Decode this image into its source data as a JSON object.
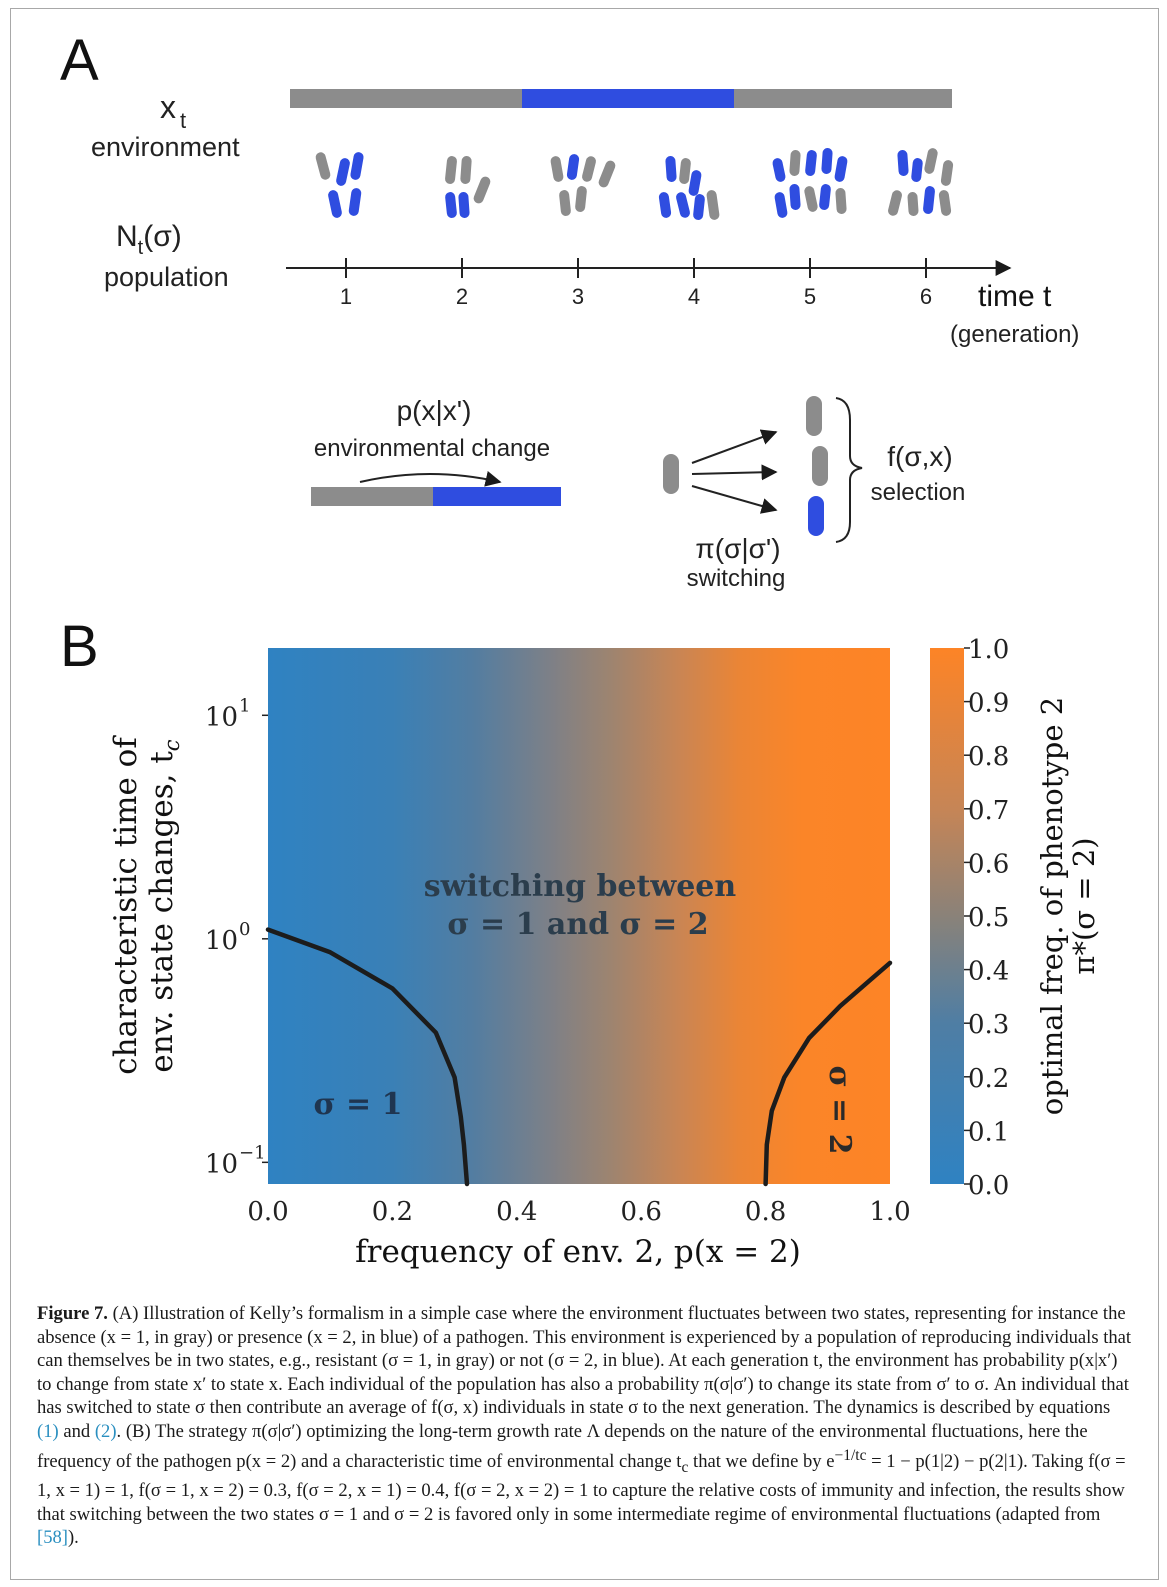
{
  "panel_a": {
    "label": "A",
    "x_t": "x",
    "x_t_sub": "t",
    "environment": "environment",
    "n_t_main": "N",
    "n_t_sub": "t",
    "n_t_arg": "(σ)",
    "population": "population",
    "ticks": [
      "1",
      "2",
      "3",
      "4",
      "5",
      "6"
    ],
    "time_label": "time t",
    "generation": "(generation)",
    "p_xx": "p(x|x')",
    "env_change": "environmental change",
    "pi_label": "π(σ|σ')",
    "switching": "switching",
    "f_label": "f(σ,x)",
    "selection": "selection",
    "colors": {
      "gray": "#8c8c8c",
      "blue": "#2f4de0"
    }
  },
  "panel_b": {
    "label": "B",
    "ylabel_line1": "characteristic time of",
    "ylabel_line2": "env. state changes, t",
    "ylabel_sub": "c",
    "xlabel": "frequency of env. 2, p(x = 2)",
    "cbar_label_line1": "optimal freq. of phenotype 2",
    "cbar_label_line2": "π*(σ = 2)",
    "region_switch_line1": "switching between",
    "region_switch_line2": "σ = 1 and σ = 2",
    "region_sigma1": "σ = 1",
    "region_sigma2": "σ = 2",
    "colors": {
      "blue": "#3183c0",
      "mid": "#8d8277",
      "orange": "#fd8426",
      "boundary": "#1c1c1c"
    }
  },
  "chart_data": {
    "type": "heatmap",
    "x": [
      0.0,
      0.2,
      0.4,
      0.6,
      0.8,
      1.0
    ],
    "xticks": [
      "0.0",
      "0.2",
      "0.4",
      "0.6",
      "0.8",
      "1.0"
    ],
    "yticks": [
      "10",
      "10",
      "10"
    ],
    "ytick_exponents": [
      "1",
      "0",
      "−1"
    ],
    "ytick_values": [
      10,
      1,
      0.1
    ],
    "yscale": "log",
    "xlim": [
      0.0,
      1.0
    ],
    "ylim": [
      0.08,
      20
    ],
    "colorbar_ticks": [
      "1.0",
      "0.9",
      "0.8",
      "0.7",
      "0.6",
      "0.5",
      "0.4",
      "0.3",
      "0.2",
      "0.1",
      "0.0"
    ],
    "colorbar_values": [
      1.0,
      0.9,
      0.8,
      0.7,
      0.6,
      0.5,
      0.4,
      0.3,
      0.2,
      0.1,
      0.0
    ],
    "boundaries": [
      {
        "name": "left",
        "x": [
          0.0,
          0.1,
          0.2,
          0.27,
          0.3,
          0.31,
          0.315,
          0.32
        ],
        "y": [
          1.1,
          0.87,
          0.6,
          0.38,
          0.24,
          0.16,
          0.12,
          0.08
        ]
      },
      {
        "name": "right",
        "x": [
          0.8,
          0.802,
          0.81,
          0.83,
          0.87,
          0.92,
          0.97,
          1.0
        ],
        "y": [
          0.08,
          0.12,
          0.17,
          0.24,
          0.36,
          0.5,
          0.66,
          0.78
        ]
      }
    ]
  },
  "caption": {
    "lead": "Figure 7.",
    "body": "(A) Illustration of Kelly’s formalism in a simple case where the environment fluctuates between two states, representing for instance the absence (x = 1, in gray) or presence (x = 2, in blue) of a pathogen. This environment is experienced by a population of reproducing individuals that can themselves be in two states, e.g., resistant (σ = 1, in gray) or not (σ = 2, in blue). At each generation t, the environment has probability p(x|x′) to change from state x′ to state x. Each individual of the population has also a probability π(σ|σ′) to change its state from σ′ to σ. An individual that has switched to state σ then contribute an average of f(σ, x) individuals in state σ to the next generation. The dynamics is described by equations",
    "ref1": "(1)",
    "and": "and",
    "ref2": "(2)",
    "body2": ". (B) The strategy π(σ|σ′) optimizing the long-term growth rate Λ depends on the nature of the environmental fluctuations, here the frequency of the pathogen p(x = 2) and a characteristic time of environmental change t",
    "tc_sub": "c",
    "body3": "that we define by e",
    "exp": "−1/tc",
    "body4": "= 1 − p(1|2) − p(2|1). Taking f(σ = 1, x = 1) = 1, f(σ = 1, x = 2) = 0.3, f(σ = 2, x = 1) = 0.4, f(σ = 2, x = 2) = 1 to capture the relative costs of immunity and infection, the results show that switching between the two states σ = 1 and σ = 2 is favored only in some intermediate regime of environmental fluctuations (adapted from",
    "ref3": "[58]",
    "end": ")."
  }
}
